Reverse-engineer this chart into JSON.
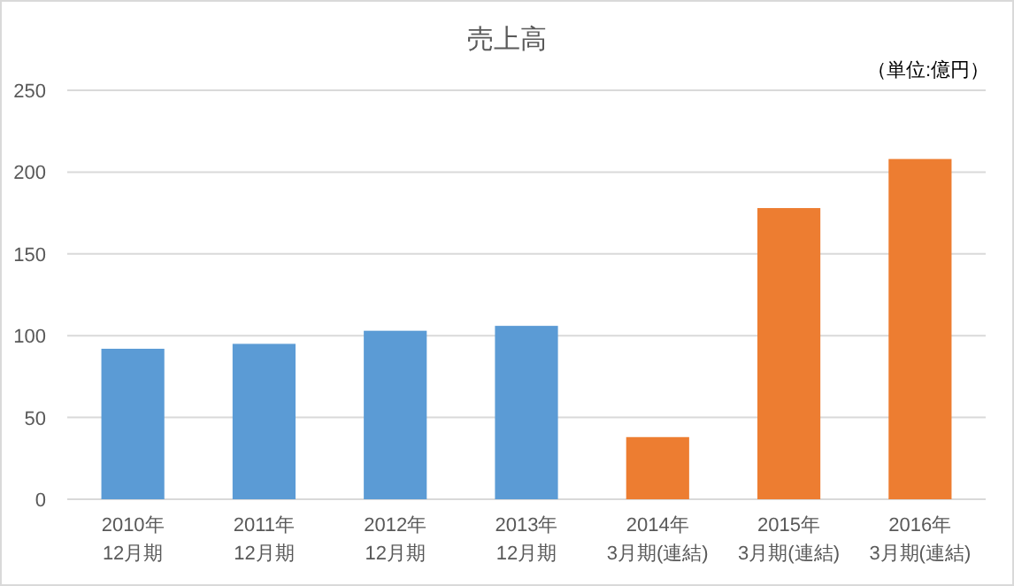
{
  "chart_data": {
    "type": "bar",
    "title": "売上高",
    "annotations": [
      "（単位:億円）"
    ],
    "categories": [
      "2010年\n12月期",
      "2011年\n12月期",
      "2012年\n12月期",
      "2013年\n12月期",
      "2014年\n3月期(連結)",
      "2015年\n3月期(連結)",
      "2016年\n3月期(連結)"
    ],
    "values": [
      92,
      95,
      103,
      106,
      38,
      178,
      208
    ],
    "colors": [
      "#5b9bd5",
      "#5b9bd5",
      "#5b9bd5",
      "#5b9bd5",
      "#ed7d31",
      "#ed7d31",
      "#ed7d31"
    ],
    "ylim": [
      0,
      250
    ],
    "yticks": [
      0,
      50,
      100,
      150,
      200,
      250
    ],
    "grid": "y"
  }
}
